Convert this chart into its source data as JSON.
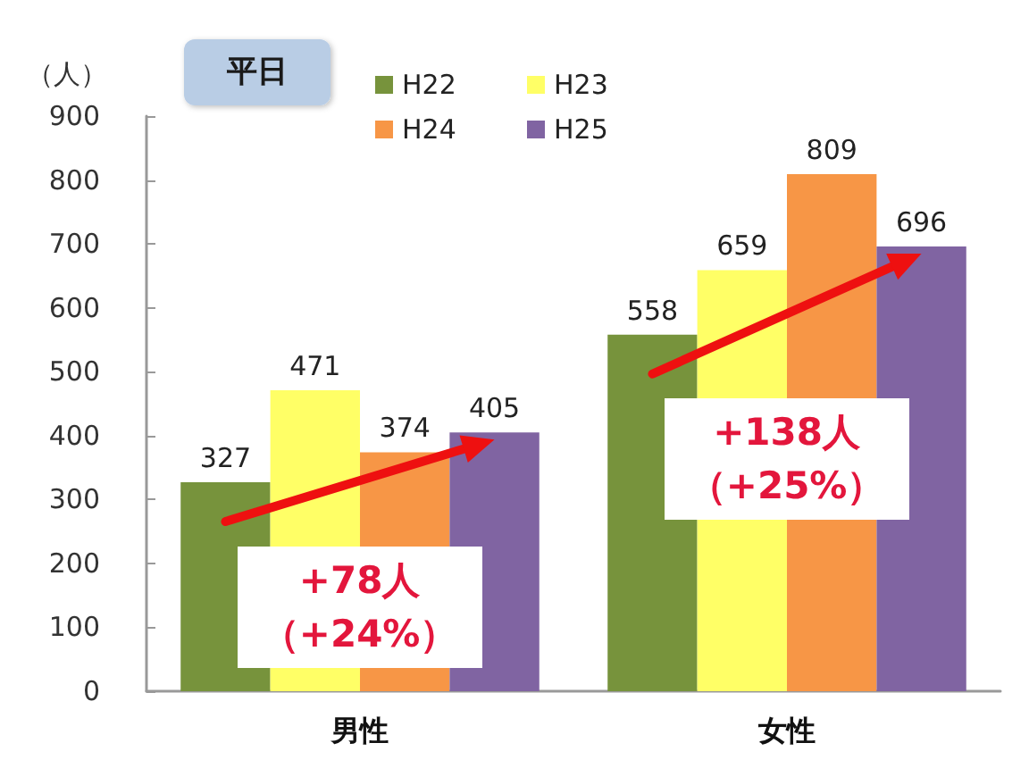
{
  "chart_data": {
    "type": "bar",
    "title": "平日",
    "ylabel": "（人）",
    "categories": [
      "男性",
      "女性"
    ],
    "series": [
      {
        "name": "H22",
        "color": "#77933c",
        "values": [
          327,
          558
        ]
      },
      {
        "name": "H23",
        "color": "#ffff66",
        "values": [
          471,
          659
        ]
      },
      {
        "name": "H24",
        "color": "#f79646",
        "values": [
          374,
          809
        ]
      },
      {
        "name": "H25",
        "color": "#8064a2",
        "values": [
          405,
          696
        ]
      }
    ],
    "ylim": [
      0,
      900
    ],
    "yticks": [
      0,
      100,
      200,
      300,
      400,
      500,
      600,
      700,
      800,
      900
    ],
    "grid": false,
    "legend": "top",
    "data_labels": true,
    "annotations": [
      "+78人（+24%）",
      "+138人（+25%）"
    ]
  }
}
